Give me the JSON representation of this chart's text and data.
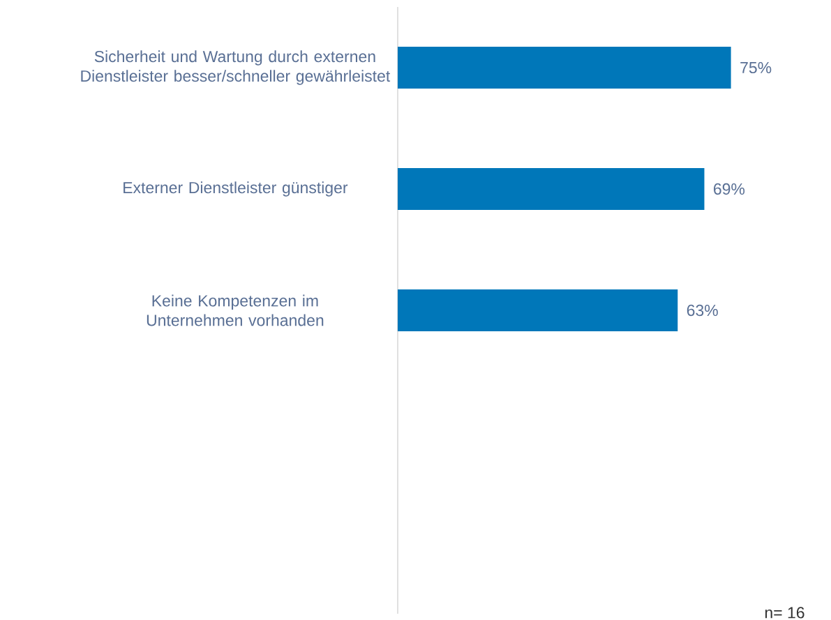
{
  "chart_data": {
    "type": "bar",
    "orientation": "horizontal",
    "categories": [
      "Sicherheit und Wartung durch externen Dienstleister besser/schneller gewährleistet",
      "Externer Dienstleister günstiger",
      "Keine Kompetenzen im Unternehmen vorhanden",
      null,
      null
    ],
    "values": [
      75,
      69,
      63,
      null,
      null
    ],
    "value_labels": [
      "75%",
      "69%",
      "63%",
      null,
      null
    ],
    "color": "#0077b9",
    "tick_labels": "y",
    "annotations": [
      "n= 16"
    ]
  }
}
